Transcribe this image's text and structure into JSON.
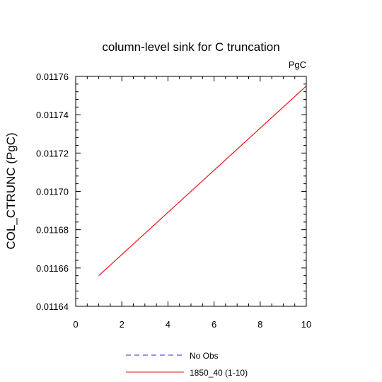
{
  "chart_data": {
    "type": "line",
    "title": "column-level sink for C truncation",
    "units_label": "PgC",
    "xlabel": "",
    "ylabel": "COL_CTRUNC  (PgC)",
    "xlim": [
      0,
      10
    ],
    "ylim": [
      0.01164,
      0.01176
    ],
    "x_ticks": [
      0,
      2,
      4,
      6,
      8,
      10
    ],
    "x_tick_labels": [
      "0",
      "2",
      "4",
      "6",
      "8",
      "10"
    ],
    "y_ticks": [
      0.01164,
      0.01166,
      0.01168,
      0.0117,
      0.01172,
      0.01174,
      0.01176
    ],
    "y_tick_labels": [
      "0.01164",
      "0.01166",
      "0.01168",
      "0.01170",
      "0.01172",
      "0.01174",
      "0.01176"
    ],
    "grid": false,
    "legend_position": "bottom",
    "series": [
      {
        "name": "No Obs",
        "color": "#2b2bd6",
        "dash": "dashed",
        "x": [],
        "y": []
      },
      {
        "name": "1850_40 (1-10)",
        "color": "#e8141a",
        "dash": "solid",
        "x": [
          1,
          10
        ],
        "y": [
          0.011656,
          0.011755
        ]
      }
    ]
  }
}
